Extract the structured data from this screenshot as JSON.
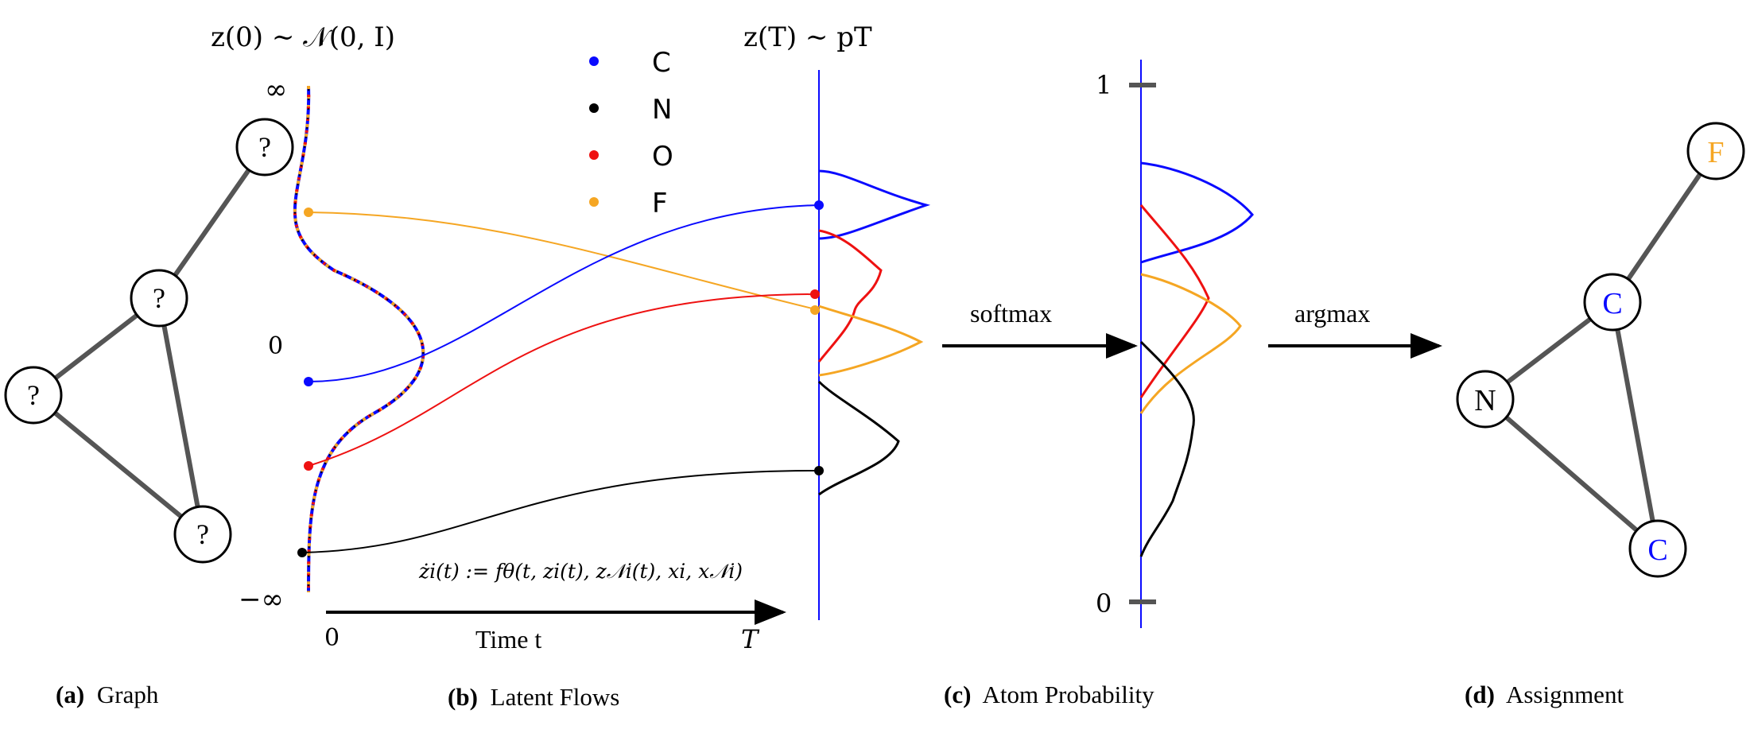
{
  "colors": {
    "C": "#0a0aff",
    "N": "#000000",
    "O": "#ee1111",
    "F": "#f5a623",
    "edge": "#555555"
  },
  "panel_a": {
    "node_label": "?",
    "caption_letter": "(a)",
    "caption_text": "Graph"
  },
  "panel_b": {
    "top_left_formula": "z(0) ∼ 𝒩(0, I)",
    "top_right_formula": "z(T) ∼ pT",
    "axis_inf": "∞",
    "axis_zero": "0",
    "axis_neg_inf": "−∞",
    "time_start": "0",
    "time_label": "Time t",
    "time_end": "T",
    "ode": "żi(t) := fθ(t, zi(t), z𝒩i(t), xi, x𝒩i)",
    "legend": [
      {
        "label": "C",
        "color": "#0a0aff"
      },
      {
        "label": "N",
        "color": "#000000"
      },
      {
        "label": "O",
        "color": "#ee1111"
      },
      {
        "label": "F",
        "color": "#f5a623"
      }
    ],
    "caption_letter": "(b)",
    "caption_text": "Latent Flows"
  },
  "softmax_label": "softmax",
  "argmax_label": "argmax",
  "panel_c": {
    "tick_top": "1",
    "tick_bottom": "0",
    "caption_letter": "(c)",
    "caption_text": "Atom Probability"
  },
  "panel_d": {
    "nodes": [
      {
        "label": "F",
        "color": "#f5a623"
      },
      {
        "label": "C",
        "color": "#0a0aff"
      },
      {
        "label": "N",
        "color": "#000000"
      },
      {
        "label": "C",
        "color": "#0a0aff"
      }
    ],
    "caption_letter": "(d)",
    "caption_text": "Assignment"
  }
}
